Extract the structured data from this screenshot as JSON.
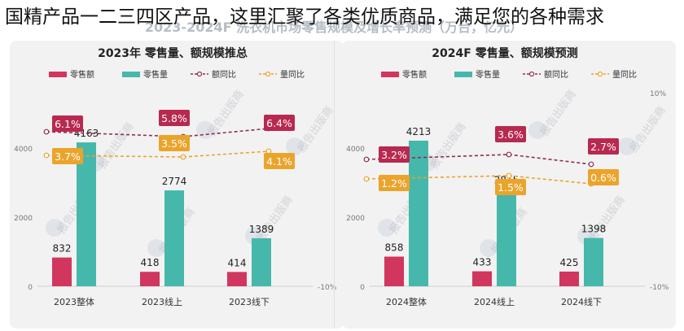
{
  "headline": "国精产品一二三四区产品，这里汇聚了各类优质商品，满足您的各种需求",
  "banner_text": "2023-2024F 洗衣机市场零售规模及增长率预测（万台，亿元）",
  "legend_labels": [
    "零售额",
    "零售量",
    "额同比",
    "量同比"
  ],
  "colors": {
    "amount_bar": "#d0365e",
    "volume_bar": "#45b8ab",
    "amount_line": "#8f2d52",
    "volume_line": "#eba42b",
    "amount_label": "#b8294f",
    "volume_label": "#eba42b",
    "watermark": "#b9bcc4",
    "seal": "#8fa4bf"
  },
  "watermark_text": "报告出版商",
  "chart_data": [
    {
      "type": "bar",
      "title": "2023年 零售量、额规模推总",
      "categories": [
        "2023整体",
        "2023线上",
        "2023线下"
      ],
      "series": [
        {
          "name": "零售额",
          "values": [
            832,
            418,
            414
          ]
        },
        {
          "name": "零售量",
          "values": [
            4163,
            2774,
            1389
          ]
        }
      ],
      "lines": [
        {
          "name": "额同比",
          "values": [
            6.1,
            5.8,
            6.4
          ],
          "labels": [
            "6.1%",
            "5.8%",
            "6.4%"
          ]
        },
        {
          "name": "量同比",
          "values": [
            3.7,
            3.5,
            4.1
          ],
          "labels": [
            "3.7%",
            "3.5%",
            "4.1%"
          ]
        }
      ],
      "ylim": [
        0,
        4800
      ],
      "yticks": [
        0,
        2000,
        4000
      ],
      "ytick_labels": [
        "0",
        "2000",
        "4000"
      ],
      "y2lim": [
        -10,
        10
      ],
      "y2ticks_visible": [
        -10
      ],
      "y2tick_labels": [
        "-10%"
      ]
    },
    {
      "type": "bar",
      "title": "2024F 零售量、额规模预测",
      "categories": [
        "2024整体",
        "2024线上",
        "2024线下"
      ],
      "series": [
        {
          "name": "零售额",
          "values": [
            858,
            433,
            425
          ]
        },
        {
          "name": "零售量",
          "values": [
            4213,
            2815,
            1398
          ]
        }
      ],
      "lines": [
        {
          "name": "额同比",
          "values": [
            3.2,
            3.6,
            2.7
          ],
          "labels": [
            "3.2%",
            "3.6%",
            "2.7%"
          ]
        },
        {
          "name": "量同比",
          "values": [
            1.2,
            1.5,
            0.6
          ],
          "labels": [
            "1.2%",
            "1.5%",
            "0.6%"
          ]
        }
      ],
      "ylim": [
        0,
        4800
      ],
      "yticks": [
        0,
        2000,
        4000
      ],
      "ytick_labels": [
        "0",
        "2000",
        "4000"
      ],
      "y2lim": [
        -10,
        10
      ],
      "y2ticks_visible": [
        10,
        -10
      ],
      "y2tick_labels": [
        "10%",
        "-10%"
      ]
    }
  ]
}
